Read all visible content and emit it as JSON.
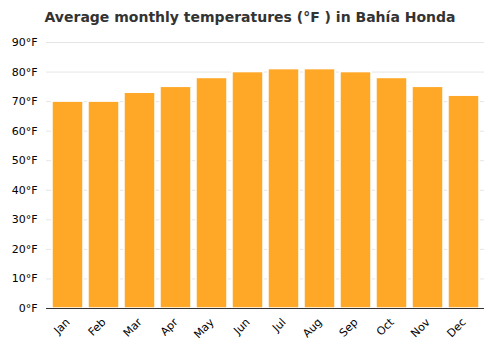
{
  "chart_data": {
    "type": "bar",
    "title": "Average monthly temperatures (°F ) in Bahía Honda",
    "categories": [
      "Jan",
      "Feb",
      "Mar",
      "Apr",
      "May",
      "Jun",
      "Jul",
      "Aug",
      "Sep",
      "Oct",
      "Nov",
      "Dec"
    ],
    "values": [
      70,
      70,
      73,
      75,
      78,
      80,
      81,
      81,
      80,
      78,
      75,
      72
    ],
    "color": "#FFA726",
    "ylim": [
      0,
      90
    ],
    "yticks": [
      {
        "value": 0,
        "label": "0°F"
      },
      {
        "value": 10,
        "label": "10°F"
      },
      {
        "value": 20,
        "label": "20°F"
      },
      {
        "value": 30,
        "label": "30°F"
      },
      {
        "value": 40,
        "label": "40°F"
      },
      {
        "value": 50,
        "label": "50°F"
      },
      {
        "value": 60,
        "label": "60°F"
      },
      {
        "value": 70,
        "label": "70°F"
      },
      {
        "value": 80,
        "label": "80°F"
      },
      {
        "value": 90,
        "label": "90°F"
      }
    ],
    "grid": true
  }
}
